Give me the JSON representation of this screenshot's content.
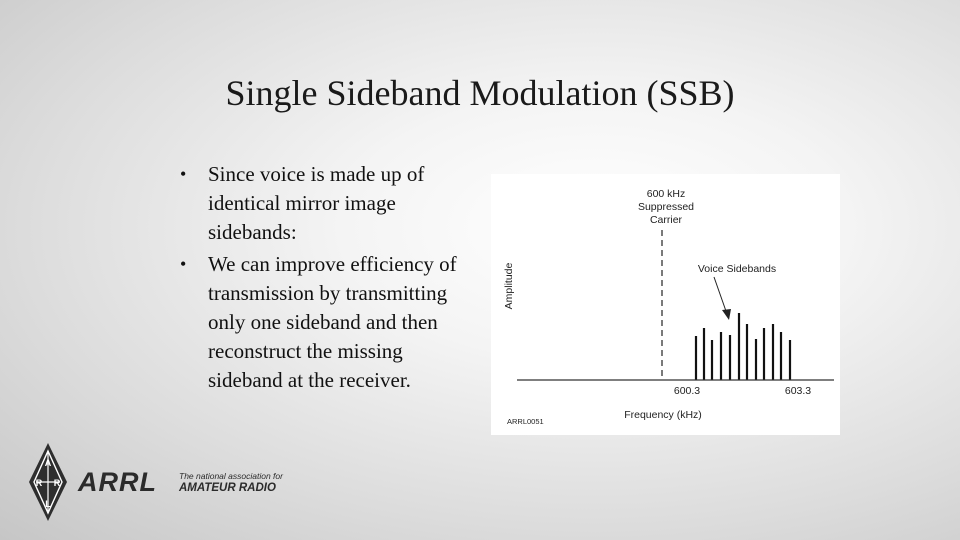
{
  "slide": {
    "title": "Single Sideband Modulation (SSB)",
    "bullets": [
      "Since voice is made up of identical mirror image sidebands:",
      "We can improve efficiency of transmission by transmitting only one sideband and then reconstruct the missing sideband at the receiver."
    ]
  },
  "figure": {
    "carrier_label": [
      "600 kHz",
      "Suppressed",
      "Carrier"
    ],
    "sidebands_label": "Voice Sidebands",
    "y_axis_label": "Amplitude",
    "x_axis_label": "Frequency (kHz)",
    "tick_left": "600.3",
    "tick_right": "603.3",
    "figure_id": "ARRL0051"
  },
  "logo": {
    "name": "ARRL",
    "tagline_1": "The national association for",
    "tagline_2": "AMATEUR RADIO",
    "diamond_letters": [
      "A",
      "R",
      "R",
      "L"
    ]
  },
  "colors": {
    "background": "#d9d9d9",
    "text": "#111111",
    "logo": "#2b2b2b"
  }
}
